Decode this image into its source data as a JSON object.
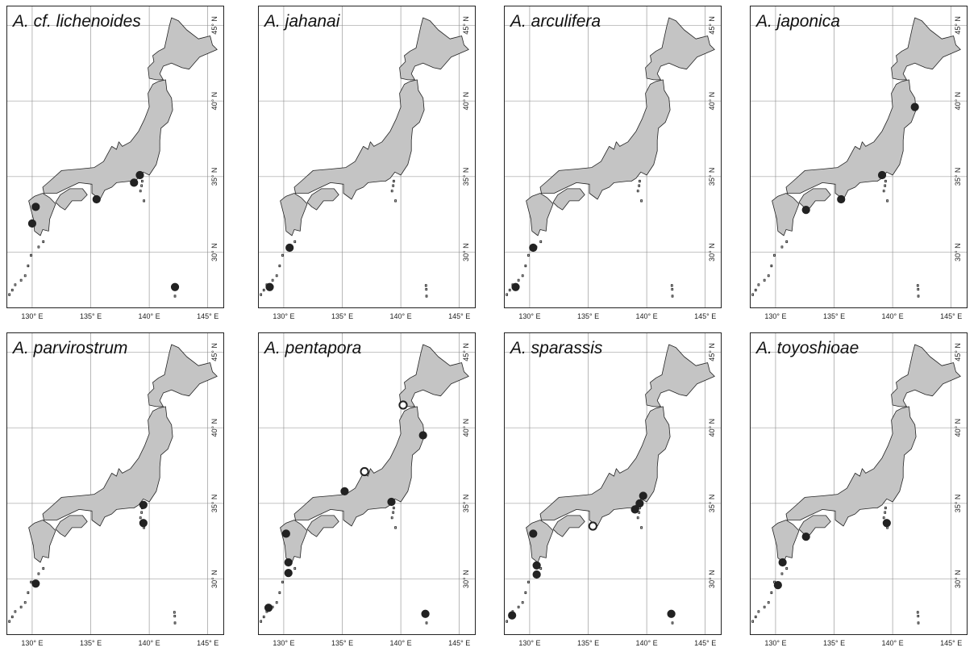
{
  "figure": {
    "axis_labels": {
      "longitude": [
        "130° E",
        "135° E",
        "140° E",
        "145° E"
      ],
      "latitude": [
        "30° N",
        "35° N",
        "40° N",
        "45° N"
      ]
    },
    "colors": {
      "land": "#c4c4c4",
      "coastline": "#222222",
      "grid": "#8a8a8a",
      "record_filled": "#222222",
      "record_open": "#ffffff"
    },
    "legend_note": "filled circle = record; open circle = alternative record type (not labelled in image)",
    "panels": [
      {
        "title": "A. cf. lichenoides",
        "records": [
          {
            "lon": 130.3,
            "lat": 33.0,
            "type": "filled"
          },
          {
            "lon": 130.0,
            "lat": 31.9,
            "type": "filled"
          },
          {
            "lon": 135.5,
            "lat": 33.5,
            "type": "filled"
          },
          {
            "lon": 138.7,
            "lat": 34.6,
            "type": "filled"
          },
          {
            "lon": 139.2,
            "lat": 35.1,
            "type": "filled"
          },
          {
            "lon": 142.2,
            "lat": 27.7,
            "type": "filled"
          }
        ]
      },
      {
        "title": "A. jahanai",
        "records": [
          {
            "lon": 130.5,
            "lat": 30.3,
            "type": "filled"
          },
          {
            "lon": 128.8,
            "lat": 27.7,
            "type": "filled"
          }
        ]
      },
      {
        "title": "A. arculifera",
        "records": [
          {
            "lon": 130.3,
            "lat": 30.3,
            "type": "filled"
          },
          {
            "lon": 128.8,
            "lat": 27.7,
            "type": "filled"
          }
        ]
      },
      {
        "title": "A. japonica",
        "records": [
          {
            "lon": 141.9,
            "lat": 39.6,
            "type": "filled"
          },
          {
            "lon": 139.1,
            "lat": 35.1,
            "type": "filled"
          },
          {
            "lon": 135.6,
            "lat": 33.5,
            "type": "filled"
          },
          {
            "lon": 132.6,
            "lat": 32.8,
            "type": "filled"
          }
        ]
      },
      {
        "title": "A. parvirostrum",
        "records": [
          {
            "lon": 139.5,
            "lat": 34.9,
            "type": "filled"
          },
          {
            "lon": 139.5,
            "lat": 33.7,
            "type": "filled"
          },
          {
            "lon": 130.3,
            "lat": 29.7,
            "type": "filled"
          }
        ]
      },
      {
        "title": "A. pentapora",
        "records": [
          {
            "lon": 140.2,
            "lat": 41.5,
            "type": "open"
          },
          {
            "lon": 141.9,
            "lat": 39.5,
            "type": "filled"
          },
          {
            "lon": 136.9,
            "lat": 37.1,
            "type": "open"
          },
          {
            "lon": 135.2,
            "lat": 35.8,
            "type": "filled"
          },
          {
            "lon": 139.2,
            "lat": 35.1,
            "type": "filled"
          },
          {
            "lon": 130.2,
            "lat": 33.0,
            "type": "filled"
          },
          {
            "lon": 130.4,
            "lat": 31.1,
            "type": "filled"
          },
          {
            "lon": 130.4,
            "lat": 30.4,
            "type": "filled"
          },
          {
            "lon": 128.7,
            "lat": 28.1,
            "type": "filled"
          },
          {
            "lon": 142.1,
            "lat": 27.7,
            "type": "filled"
          }
        ]
      },
      {
        "title": "A. sparassis",
        "records": [
          {
            "lon": 130.3,
            "lat": 33.0,
            "type": "filled"
          },
          {
            "lon": 130.6,
            "lat": 30.9,
            "type": "filled"
          },
          {
            "lon": 130.6,
            "lat": 30.3,
            "type": "filled"
          },
          {
            "lon": 135.4,
            "lat": 33.5,
            "type": "open"
          },
          {
            "lon": 139.0,
            "lat": 34.6,
            "type": "filled"
          },
          {
            "lon": 139.4,
            "lat": 35.0,
            "type": "filled"
          },
          {
            "lon": 139.7,
            "lat": 35.5,
            "type": "filled"
          },
          {
            "lon": 142.1,
            "lat": 27.7,
            "type": "filled"
          },
          {
            "lon": 128.5,
            "lat": 27.6,
            "type": "filled"
          }
        ]
      },
      {
        "title": "A. toyoshioae",
        "records": [
          {
            "lon": 139.5,
            "lat": 33.7,
            "type": "filled"
          },
          {
            "lon": 132.6,
            "lat": 32.8,
            "type": "filled"
          },
          {
            "lon": 130.6,
            "lat": 31.1,
            "type": "filled"
          },
          {
            "lon": 130.2,
            "lat": 29.6,
            "type": "filled"
          }
        ]
      }
    ]
  }
}
